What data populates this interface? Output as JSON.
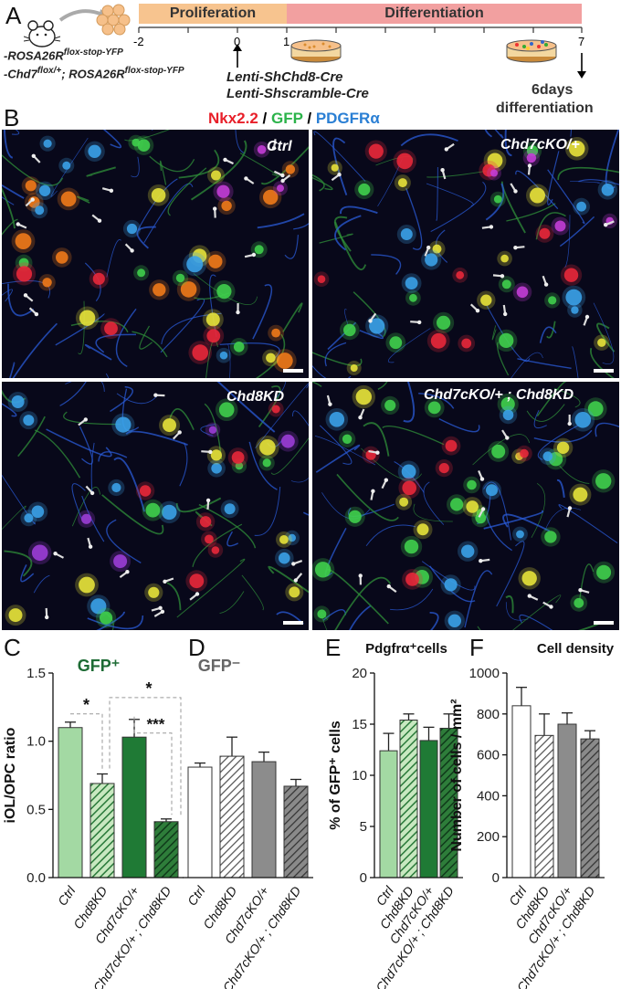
{
  "panel_A": {
    "letter": "A",
    "genotypes": [
      "-ROSA26R",
      "flox-stop-YFP",
      "-Chd7",
      "flox/+",
      "; ROSA26R",
      "flox-stop-YFP"
    ],
    "phases": {
      "proliferation": "Proliferation",
      "differentiation": "Differentiation"
    },
    "ticks": [
      "-2",
      "0",
      "1",
      "7"
    ],
    "lentis": [
      "Lenti-ShChd8-Cre",
      "Lenti-Shscramble-Cre"
    ],
    "diff_label": [
      "6days",
      "differentiation"
    ],
    "colors": {
      "proliferation": "#f7c48f",
      "differentiation": "#f2a0a0"
    }
  },
  "panel_B": {
    "letter": "B",
    "stain_labels": [
      {
        "text": "Nkx2.2",
        "color": "#e8202a"
      },
      {
        "text": " / ",
        "color": "#000000"
      },
      {
        "text": "GFP",
        "color": "#2bb34a"
      },
      {
        "text": " / ",
        "color": "#000000"
      },
      {
        "text": "PDGFRα",
        "color": "#2a7fd4"
      }
    ],
    "images": [
      "Ctrl",
      "Chd7cKO/+",
      "Chd8KD",
      "Chd7cKO/+ ; Chd8KD"
    ]
  },
  "chart_data": [
    {
      "panel": "C",
      "type": "bar",
      "title": "GFP⁺",
      "ylabel": "iOL/OPC ratio",
      "ylim": [
        0.0,
        1.5
      ],
      "yticks": [
        "0.0",
        "0.5",
        "1.0",
        "1.5"
      ],
      "categories": [
        "Ctrl",
        "Chd8KD",
        "Chd7cKO/+",
        "Chd7cKO/+ ; Chd8KD"
      ],
      "values": [
        1.1,
        0.69,
        1.03,
        0.41
      ],
      "errors": [
        0.04,
        0.07,
        0.13,
        0.02
      ],
      "significance": [
        "*",
        "*",
        "***"
      ],
      "colors": [
        "#a3d9a3",
        "#1a7a3a",
        "#1a6b35",
        "#1f5b30"
      ]
    },
    {
      "panel": "D",
      "type": "bar",
      "title": "GFP⁻",
      "categories": [
        "Ctrl",
        "Chd8KD",
        "Chd7cKO/+",
        "Chd7cKO/+ ; Chd8KD"
      ],
      "values": [
        0.81,
        0.89,
        0.85,
        0.67
      ],
      "errors": [
        0.03,
        0.14,
        0.07,
        0.05
      ],
      "colors": [
        "#ffffff",
        "#777777",
        "#8c8c8c",
        "#555555"
      ]
    },
    {
      "panel": "E",
      "type": "bar",
      "title": "Pdgfrα⁺cells",
      "ylabel": "% of GFP⁺ cells",
      "ylim": [
        0,
        20
      ],
      "yticks": [
        "0",
        "5",
        "10",
        "15",
        "20"
      ],
      "categories": [
        "Ctrl",
        "Chd8KD",
        "Chd7cKO/+",
        "Chd7cKO/+ ; Chd8KD"
      ],
      "values": [
        12.4,
        15.4,
        13.4,
        14.6
      ],
      "errors": [
        1.7,
        0.6,
        1.3,
        1.4
      ],
      "colors": [
        "#a3d9a3",
        "#1a7a3a",
        "#1a6b35",
        "#1f5b30"
      ]
    },
    {
      "panel": "F",
      "type": "bar",
      "title": "Cell density",
      "ylabel": "Number of cells / mm²",
      "ylim": [
        0,
        1000
      ],
      "yticks": [
        "0",
        "200",
        "400",
        "600",
        "800",
        "1000"
      ],
      "categories": [
        "Ctrl",
        "Chd8KD",
        "Chd7cKO/+",
        "Chd7cKO/+ ; Chd8KD"
      ],
      "values": [
        840,
        695,
        750,
        678
      ],
      "errors": [
        90,
        105,
        55,
        40
      ],
      "colors": [
        "#ffffff",
        "#777777",
        "#8c8c8c",
        "#555555"
      ]
    }
  ]
}
